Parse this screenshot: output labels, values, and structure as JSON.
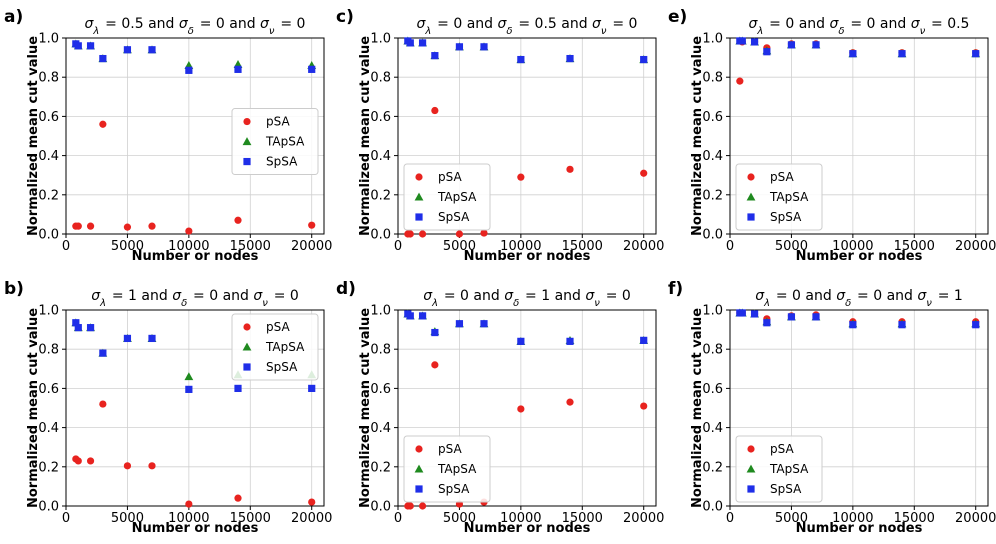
{
  "figure": {
    "background": "#ffffff"
  },
  "chart_data": [
    {
      "id": "a",
      "panel_label": "a)",
      "type": "scatter",
      "title": "σ_λ = 0.5 and σ_δ = 0 and σ_ν = 0",
      "xlabel": "Number or nodes",
      "ylabel": "Normalized mean cut value",
      "xlim": [
        0,
        21000
      ],
      "ylim": [
        0,
        1.0
      ],
      "xticks": [
        0,
        5000,
        10000,
        15000,
        20000
      ],
      "yticks": [
        0.0,
        0.2,
        0.4,
        0.6,
        0.8,
        1.0
      ],
      "grid": true,
      "legend_position": "center-right",
      "x": [
        800,
        1000,
        2000,
        3000,
        5000,
        7000,
        10000,
        14000,
        20000
      ],
      "series": [
        {
          "name": "pSA",
          "marker": "circle",
          "color": "#e8231f",
          "values": [
            0.04,
            0.04,
            0.04,
            0.56,
            0.035,
            0.04,
            0.015,
            0.07,
            0.045
          ]
        },
        {
          "name": "TApSA",
          "marker": "triangle",
          "color": "#1f8a1f",
          "values": [
            0.97,
            0.96,
            0.96,
            0.895,
            0.94,
            0.94,
            0.86,
            0.865,
            0.86
          ]
        },
        {
          "name": "SpSA",
          "marker": "square",
          "color": "#1f2ee8",
          "values": [
            0.97,
            0.96,
            0.96,
            0.895,
            0.94,
            0.94,
            0.835,
            0.84,
            0.84
          ]
        }
      ]
    },
    {
      "id": "c",
      "panel_label": "c)",
      "type": "scatter",
      "title": "σ_λ = 0 and σ_δ = 0.5 and σ_ν = 0",
      "xlabel": "Number or nodes",
      "ylabel": "Normalized mean cut value",
      "xlim": [
        0,
        21000
      ],
      "ylim": [
        0,
        1.0
      ],
      "xticks": [
        0,
        5000,
        10000,
        15000,
        20000
      ],
      "yticks": [
        0.0,
        0.2,
        0.4,
        0.6,
        0.8,
        1.0
      ],
      "grid": true,
      "legend_position": "lower-left",
      "x": [
        800,
        1000,
        2000,
        3000,
        5000,
        7000,
        10000,
        14000,
        20000
      ],
      "series": [
        {
          "name": "pSA",
          "marker": "circle",
          "color": "#e8231f",
          "values": [
            0.0,
            0.0,
            0.0,
            0.63,
            0.0,
            0.005,
            0.29,
            0.33,
            0.31
          ]
        },
        {
          "name": "TApSA",
          "marker": "triangle",
          "color": "#1f8a1f",
          "values": [
            0.985,
            0.975,
            0.975,
            0.91,
            0.955,
            0.955,
            0.89,
            0.895,
            0.89
          ]
        },
        {
          "name": "SpSA",
          "marker": "square",
          "color": "#1f2ee8",
          "values": [
            0.985,
            0.975,
            0.975,
            0.91,
            0.955,
            0.955,
            0.89,
            0.895,
            0.89
          ]
        }
      ]
    },
    {
      "id": "e",
      "panel_label": "e)",
      "type": "scatter",
      "title": "σ_λ = 0 and σ_δ = 0 and σ_ν = 0.5",
      "xlabel": "Number or nodes",
      "ylabel": "Normalized mean cut value",
      "xlim": [
        0,
        21000
      ],
      "ylim": [
        0,
        1.0
      ],
      "xticks": [
        0,
        5000,
        10000,
        15000,
        20000
      ],
      "yticks": [
        0.0,
        0.2,
        0.4,
        0.6,
        0.8,
        1.0
      ],
      "grid": true,
      "legend_position": "lower-left",
      "x": [
        800,
        1000,
        2000,
        3000,
        5000,
        7000,
        10000,
        14000,
        20000
      ],
      "series": [
        {
          "name": "pSA",
          "marker": "circle",
          "color": "#e8231f",
          "values": [
            0.78,
            0.98,
            0.98,
            0.95,
            0.97,
            0.97,
            0.925,
            0.925,
            0.925
          ]
        },
        {
          "name": "TApSA",
          "marker": "triangle",
          "color": "#1f8a1f",
          "values": [
            0.985,
            0.985,
            0.98,
            0.935,
            0.965,
            0.965,
            0.92,
            0.92,
            0.92
          ]
        },
        {
          "name": "SpSA",
          "marker": "square",
          "color": "#1f2ee8",
          "values": [
            0.985,
            0.985,
            0.98,
            0.93,
            0.965,
            0.965,
            0.92,
            0.92,
            0.92
          ]
        }
      ]
    },
    {
      "id": "b",
      "panel_label": "b)",
      "type": "scatter",
      "title": "σ_λ = 1 and σ_δ = 0 and σ_ν = 0",
      "xlabel": "Number or nodes",
      "ylabel": "Normalized mean cut value",
      "xlim": [
        0,
        21000
      ],
      "ylim": [
        0,
        1.0
      ],
      "xticks": [
        0,
        5000,
        10000,
        15000,
        20000
      ],
      "yticks": [
        0.0,
        0.2,
        0.4,
        0.6,
        0.8,
        1.0
      ],
      "grid": true,
      "legend_position": "top-right",
      "x": [
        800,
        1000,
        2000,
        3000,
        5000,
        7000,
        10000,
        14000,
        20000
      ],
      "series": [
        {
          "name": "pSA",
          "marker": "circle",
          "color": "#e8231f",
          "values": [
            0.24,
            0.23,
            0.23,
            0.52,
            0.205,
            0.205,
            0.01,
            0.04,
            0.02
          ]
        },
        {
          "name": "TApSA",
          "marker": "triangle",
          "color": "#1f8a1f",
          "values": [
            0.935,
            0.91,
            0.91,
            0.78,
            0.855,
            0.855,
            0.66,
            0.67,
            0.67
          ]
        },
        {
          "name": "SpSA",
          "marker": "square",
          "color": "#1f2ee8",
          "values": [
            0.935,
            0.91,
            0.91,
            0.78,
            0.855,
            0.855,
            0.595,
            0.6,
            0.6
          ]
        }
      ]
    },
    {
      "id": "d",
      "panel_label": "d)",
      "type": "scatter",
      "title": "σ_λ = 0 and σ_δ = 1 and σ_ν = 0",
      "xlabel": "Number or nodes",
      "ylabel": "Normalized mean cut value",
      "xlim": [
        0,
        21000
      ],
      "ylim": [
        0,
        1.0
      ],
      "xticks": [
        0,
        5000,
        10000,
        15000,
        20000
      ],
      "yticks": [
        0.0,
        0.2,
        0.4,
        0.6,
        0.8,
        1.0
      ],
      "grid": true,
      "legend_position": "lower-left",
      "x": [
        800,
        1000,
        2000,
        3000,
        5000,
        7000,
        10000,
        14000,
        20000
      ],
      "series": [
        {
          "name": "pSA",
          "marker": "circle",
          "color": "#e8231f",
          "values": [
            0.0,
            0.0,
            0.0,
            0.72,
            0.01,
            0.02,
            0.495,
            0.53,
            0.51
          ]
        },
        {
          "name": "TApSA",
          "marker": "triangle",
          "color": "#1f8a1f",
          "values": [
            0.98,
            0.97,
            0.97,
            0.89,
            0.93,
            0.93,
            0.84,
            0.845,
            0.845
          ]
        },
        {
          "name": "SpSA",
          "marker": "square",
          "color": "#1f2ee8",
          "values": [
            0.98,
            0.97,
            0.97,
            0.885,
            0.93,
            0.93,
            0.84,
            0.84,
            0.845
          ]
        }
      ]
    },
    {
      "id": "f",
      "panel_label": "f)",
      "type": "scatter",
      "title": "σ_λ = 0 and σ_δ = 0 and σ_ν = 1",
      "xlabel": "Number or nodes",
      "ylabel": "Normalized mean cut value",
      "xlim": [
        0,
        21000
      ],
      "ylim": [
        0,
        1.0
      ],
      "xticks": [
        0,
        5000,
        10000,
        15000,
        20000
      ],
      "yticks": [
        0.0,
        0.2,
        0.4,
        0.6,
        0.8,
        1.0
      ],
      "grid": true,
      "legend_position": "lower-left",
      "x": [
        800,
        1000,
        2000,
        3000,
        5000,
        7000,
        10000,
        14000,
        20000
      ],
      "series": [
        {
          "name": "pSA",
          "marker": "circle",
          "color": "#e8231f",
          "values": [
            0.985,
            0.985,
            0.98,
            0.955,
            0.97,
            0.975,
            0.94,
            0.94,
            0.94
          ]
        },
        {
          "name": "TApSA",
          "marker": "triangle",
          "color": "#1f8a1f",
          "values": [
            0.985,
            0.985,
            0.98,
            0.94,
            0.965,
            0.965,
            0.93,
            0.93,
            0.93
          ]
        },
        {
          "name": "SpSA",
          "marker": "square",
          "color": "#1f2ee8",
          "values": [
            0.985,
            0.985,
            0.98,
            0.935,
            0.965,
            0.965,
            0.925,
            0.925,
            0.925
          ]
        }
      ]
    }
  ]
}
